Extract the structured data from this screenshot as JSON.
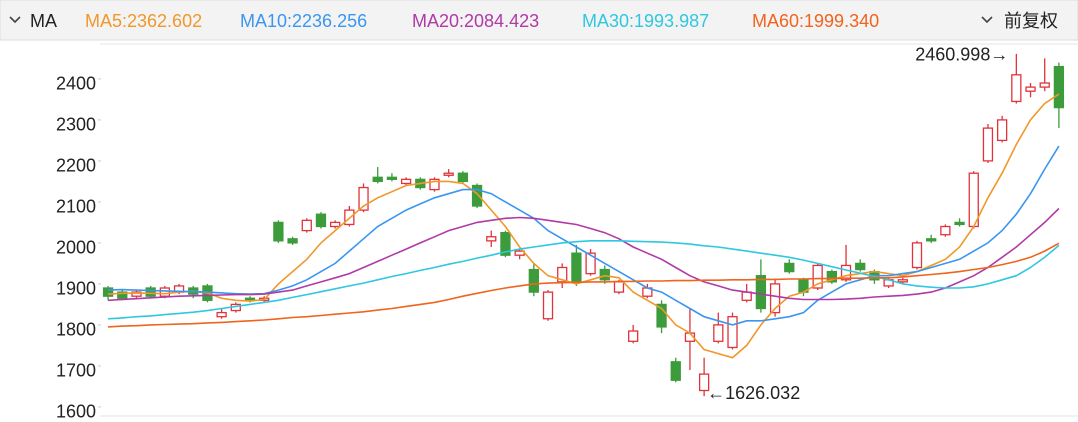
{
  "header": {
    "indicator": "MA",
    "adjust": "前复权"
  },
  "chart_data": {
    "type": "candlestick",
    "up_color": "#e0333a",
    "down_color": "#3c9c3c",
    "ylim": [
      1590,
      2490
    ],
    "yticks": [
      1600,
      1700,
      1800,
      1900,
      2000,
      2100,
      2200,
      2300,
      2400
    ],
    "open": [
      1890,
      1880,
      1870,
      1890,
      1870,
      1880,
      1890,
      1895,
      1820,
      1835,
      1865,
      1860,
      2050,
      2010,
      2030,
      2070,
      2040,
      2045,
      2080,
      2160,
      2160,
      2145,
      2155,
      2130,
      2165,
      2170,
      2140,
      2005,
      2025,
      1970,
      1935,
      1815,
      1905,
      1975,
      1925,
      1935,
      1880,
      1760,
      1870,
      1850,
      1710,
      1760,
      1640,
      1760,
      1745,
      1860,
      1920,
      1830,
      1950,
      1910,
      1890,
      1930,
      1910,
      1950,
      1930,
      1895,
      1905,
      1940,
      2010,
      2020,
      2050,
      2040,
      2200,
      2250,
      2345,
      2370,
      2380,
      2430
    ],
    "high": [
      1895,
      1885,
      1885,
      1895,
      1895,
      1900,
      1895,
      1900,
      1840,
      1855,
      1870,
      1870,
      2055,
      2015,
      2060,
      2075,
      2055,
      2090,
      2145,
      2185,
      2170,
      2160,
      2160,
      2160,
      2180,
      2175,
      2145,
      2030,
      2030,
      1985,
      1950,
      1885,
      1950,
      1995,
      1985,
      1945,
      1910,
      1800,
      1900,
      1860,
      1720,
      1840,
      1720,
      1830,
      1830,
      1900,
      1960,
      1910,
      1960,
      1915,
      1950,
      1935,
      1995,
      1960,
      1935,
      1915,
      1915,
      2005,
      2020,
      2045,
      2060,
      2175,
      2290,
      2310,
      2460.998,
      2390,
      2450,
      2440
    ],
    "low": [
      1860,
      1860,
      1865,
      1865,
      1865,
      1875,
      1865,
      1855,
      1815,
      1830,
      1855,
      1855,
      2000,
      1995,
      2025,
      2035,
      2035,
      2040,
      2075,
      2145,
      2150,
      2140,
      2130,
      2125,
      2160,
      2145,
      2085,
      1990,
      1965,
      1960,
      1870,
      1810,
      1890,
      1895,
      1920,
      1900,
      1875,
      1755,
      1865,
      1780,
      1660,
      1690,
      1626.032,
      1755,
      1740,
      1855,
      1830,
      1820,
      1925,
      1870,
      1885,
      1900,
      1905,
      1930,
      1900,
      1890,
      1900,
      1935,
      2000,
      2015,
      2040,
      2035,
      2195,
      2245,
      2340,
      2355,
      2370,
      2280
    ],
    "close": [
      1870,
      1865,
      1880,
      1870,
      1890,
      1895,
      1875,
      1860,
      1830,
      1850,
      1860,
      1865,
      2005,
      2000,
      2055,
      2040,
      2050,
      2080,
      2135,
      2150,
      2155,
      2155,
      2135,
      2155,
      2170,
      2150,
      2090,
      2015,
      1970,
      1980,
      1880,
      1880,
      1940,
      1905,
      1975,
      1910,
      1905,
      1785,
      1890,
      1795,
      1665,
      1780,
      1680,
      1800,
      1820,
      1880,
      1840,
      1900,
      1930,
      1880,
      1945,
      1905,
      1945,
      1935,
      1910,
      1910,
      1910,
      2000,
      2005,
      2040,
      2045,
      2170,
      2280,
      2300,
      2410,
      2380,
      2390,
      2330
    ],
    "series": [
      {
        "name": "MA5:2362.602",
        "color": "#f0982a",
        "values": [
          1875,
          1877,
          1878,
          1877,
          1876,
          1880,
          1882,
          1878,
          1865,
          1860,
          1858,
          1862,
          1900,
          1930,
          1960,
          2000,
          2030,
          2060,
          2090,
          2110,
          2125,
          2140,
          2145,
          2150,
          2150,
          2145,
          2120,
          2080,
          2040,
          1990,
          1950,
          1920,
          1910,
          1900,
          1910,
          1920,
          1915,
          1880,
          1860,
          1840,
          1800,
          1780,
          1740,
          1730,
          1720,
          1750,
          1800,
          1840,
          1870,
          1880,
          1900,
          1910,
          1920,
          1925,
          1930,
          1925,
          1920,
          1930,
          1945,
          1960,
          1990,
          2040,
          2110,
          2170,
          2240,
          2300,
          2340,
          2363
        ]
      },
      {
        "name": "MA10:2236.256",
        "color": "#3a96f0",
        "values": [
          1885,
          1886,
          1885,
          1884,
          1883,
          1882,
          1881,
          1880,
          1878,
          1876,
          1875,
          1876,
          1885,
          1895,
          1910,
          1930,
          1950,
          1980,
          2010,
          2040,
          2060,
          2080,
          2095,
          2110,
          2120,
          2130,
          2130,
          2120,
          2100,
          2080,
          2060,
          2030,
          2010,
          1990,
          1970,
          1950,
          1930,
          1910,
          1890,
          1880,
          1860,
          1840,
          1820,
          1810,
          1800,
          1810,
          1810,
          1815,
          1820,
          1830,
          1860,
          1880,
          1900,
          1910,
          1920,
          1920,
          1925,
          1930,
          1940,
          1950,
          1960,
          1980,
          2000,
          2030,
          2070,
          2120,
          2180,
          2236
        ]
      },
      {
        "name": "MA20:2084.423",
        "color": "#b03aa6",
        "values": [
          1860,
          1862,
          1864,
          1866,
          1868,
          1870,
          1871,
          1872,
          1873,
          1874,
          1874,
          1875,
          1880,
          1885,
          1895,
          1905,
          1915,
          1925,
          1940,
          1955,
          1970,
          1985,
          2000,
          2015,
          2030,
          2040,
          2050,
          2055,
          2060,
          2062,
          2060,
          2055,
          2050,
          2045,
          2035,
          2025,
          2010,
          1990,
          1975,
          1960,
          1940,
          1920,
          1905,
          1895,
          1885,
          1880,
          1875,
          1870,
          1865,
          1862,
          1862,
          1862,
          1863,
          1865,
          1868,
          1870,
          1872,
          1875,
          1880,
          1890,
          1905,
          1920,
          1940,
          1965,
          1990,
          2020,
          2050,
          2084
        ]
      },
      {
        "name": "MA30:1993.987",
        "color": "#2ec8e0",
        "values": [
          1815,
          1817,
          1820,
          1822,
          1825,
          1828,
          1831,
          1835,
          1840,
          1845,
          1850,
          1855,
          1860,
          1867,
          1874,
          1881,
          1888,
          1895,
          1902,
          1910,
          1918,
          1925,
          1933,
          1940,
          1948,
          1955,
          1963,
          1970,
          1978,
          1985,
          1990,
          1995,
          2000,
          2003,
          2005,
          2005,
          2005,
          2004,
          2003,
          2002,
          2000,
          1997,
          1993,
          1990,
          1985,
          1980,
          1975,
          1970,
          1965,
          1958,
          1950,
          1942,
          1934,
          1926,
          1918,
          1910,
          1900,
          1895,
          1892,
          1890,
          1890,
          1893,
          1900,
          1910,
          1920,
          1940,
          1965,
          1994
        ]
      },
      {
        "name": "MA60:1999.340",
        "color": "#f0641e",
        "values": [
          1795,
          1797,
          1798,
          1800,
          1801,
          1802,
          1803,
          1805,
          1806,
          1808,
          1810,
          1812,
          1815,
          1818,
          1820,
          1823,
          1826,
          1829,
          1832,
          1836,
          1840,
          1845,
          1850,
          1855,
          1862,
          1870,
          1877,
          1884,
          1890,
          1895,
          1900,
          1902,
          1903,
          1904,
          1905,
          1905,
          1906,
          1906,
          1907,
          1907,
          1908,
          1908,
          1909,
          1909,
          1910,
          1910,
          1911,
          1911,
          1912,
          1912,
          1913,
          1913,
          1914,
          1914,
          1915,
          1915,
          1917,
          1920,
          1923,
          1926,
          1930,
          1935,
          1940,
          1947,
          1955,
          1965,
          1980,
          1999
        ]
      }
    ],
    "annotations": [
      {
        "label": "2460.998→",
        "value": 2460.998
      },
      {
        "label": "←1626.032",
        "value": 1626.032
      }
    ]
  }
}
